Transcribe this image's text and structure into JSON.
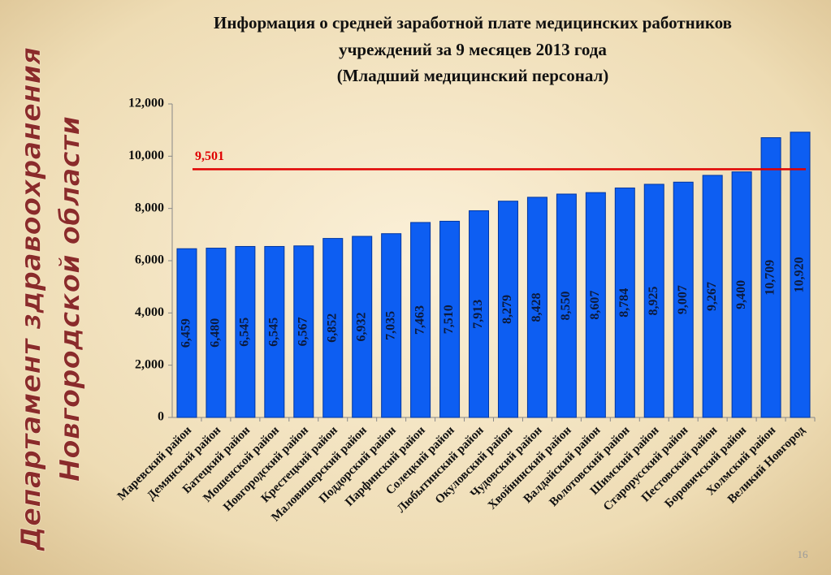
{
  "title": [
    "Информация о средней заработной плате медицинских работников",
    "учреждений за 9 месяцев 2013 года",
    "(Младший медицинский персонал)"
  ],
  "sidebar": [
    "Департамент здравоохранения",
    "Новгородской области"
  ],
  "page_number": 16,
  "chart_data": {
    "type": "bar",
    "categories": [
      "Маревский район",
      "Демянский район",
      "Батецкий район",
      "Мошенской район",
      "Новгородский район",
      "Крестецкий район",
      "Маловишерский район",
      "Поддорский район",
      "Парфинский район",
      "Солецкий район",
      "Любытинский район",
      "Окуловский район",
      "Чудовский район",
      "Хвойнинский район",
      "Валдайский район",
      "Волотовский район",
      "Шимский район",
      "Старорусский район",
      "Пестовский район",
      "Боровичский район",
      "Холмский район",
      "Великий Новгород"
    ],
    "values": [
      6459,
      6480,
      6545,
      6545,
      6567,
      6852,
      6932,
      7035,
      7463,
      7510,
      7913,
      8279,
      8428,
      8550,
      8607,
      8784,
      8925,
      9007,
      9267,
      9400,
      10709,
      10920
    ],
    "value_labels": [
      "6,459",
      "6,480",
      "6,545",
      "6,545",
      "6,567",
      "6,852",
      "6,932",
      "7,035",
      "7,463",
      "7,510",
      "7,913",
      "8,279",
      "8,428",
      "8,550",
      "8,607",
      "8,784",
      "8,925",
      "9,007",
      "9,267",
      "9,400",
      "10,709",
      "10,920"
    ],
    "color": "#0d5ef2",
    "ylim": [
      0,
      12000
    ],
    "yticks": [
      0,
      {
        "value": 2000,
        "label": "2,000"
      },
      {
        "value": 4000,
        "label": "4,000"
      },
      {
        "value": 6000,
        "label": "6,000"
      },
      {
        "value": 8000,
        "label": "8,000"
      },
      {
        "value": 10000,
        "label": "10,000"
      },
      {
        "value": 12000,
        "label": "12,000"
      }
    ],
    "grid": false,
    "reference_line": {
      "value": 9501,
      "label": "9,501",
      "color": "#e00000"
    }
  }
}
